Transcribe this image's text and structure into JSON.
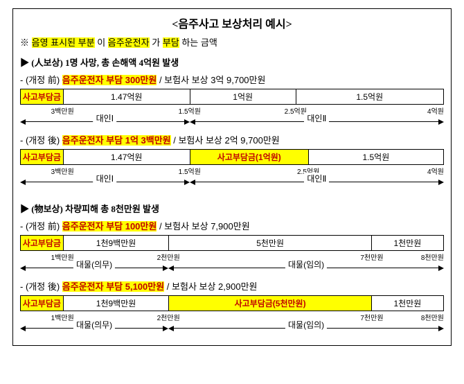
{
  "title": "<음주사고 보상처리 예시>",
  "note_prefix": "※ ",
  "note_parts": [
    "음영 표시된 부분",
    "이 ",
    "음주운전자",
    "가 ",
    "부담",
    "하는 금액"
  ],
  "person": {
    "head_marker": "▶",
    "head_label": "(人보상)",
    "head_rest": " 1명 사망, 총 손해액 4억원 발생",
    "before": {
      "tag": "(개정 前)",
      "driver": "음주운전자 부담 300만원",
      "insurer": " / 보험사 보상 3억 9,700만원",
      "cells": [
        "사고부담금",
        "1.47억원",
        "1억원",
        "1.5억원"
      ],
      "widths": [
        "10%",
        "30%",
        "25%",
        "35%"
      ],
      "hl_idx": [
        true,
        false,
        false,
        false
      ],
      "ticks": [
        {
          "pos": 10,
          "label": "3백만원"
        },
        {
          "pos": 40,
          "label": "1.5억원"
        },
        {
          "pos": 65,
          "label": "2.5억원"
        },
        {
          "pos": 100,
          "label": "4억원"
        }
      ],
      "arrows": [
        {
          "l": 0,
          "r": 40,
          "label": "대인Ⅰ"
        },
        {
          "l": 40,
          "r": 100,
          "label": "대인Ⅱ"
        }
      ]
    },
    "after": {
      "tag": "(개정 後)",
      "driver": "음주운전자 부담 1억 3백만원",
      "insurer": " / 보험사 보상 2억 9,700만원",
      "cells": [
        "사고부담금",
        "1.47억원",
        "사고부담금(1억원)",
        "1.5억원"
      ],
      "widths": [
        "10%",
        "30%",
        "28%",
        "32%"
      ],
      "hl_idx": [
        true,
        false,
        true,
        false
      ],
      "ticks": [
        {
          "pos": 10,
          "label": "3백만원"
        },
        {
          "pos": 40,
          "label": "1.5억원"
        },
        {
          "pos": 68,
          "label": "2.5억원"
        },
        {
          "pos": 100,
          "label": "4억원"
        }
      ],
      "arrows": [
        {
          "l": 0,
          "r": 40,
          "label": "대인Ⅰ"
        },
        {
          "l": 40,
          "r": 100,
          "label": "대인Ⅱ"
        }
      ]
    }
  },
  "object": {
    "head_marker": "▶",
    "head_label": "(物보상)",
    "head_rest": " 차량피해 총 8천만원 발생",
    "before": {
      "tag": "(개정 前)",
      "driver": "음주운전자 부담 100만원",
      "insurer": " / 보험사 보상 7,900만원",
      "cells": [
        "사고부담금",
        "1천9백만원",
        "5천만원",
        "1천만원"
      ],
      "widths": [
        "10%",
        "25%",
        "48%",
        "17%"
      ],
      "hl_idx": [
        true,
        false,
        false,
        false
      ],
      "ticks": [
        {
          "pos": 10,
          "label": "1백만원"
        },
        {
          "pos": 35,
          "label": "2천만원"
        },
        {
          "pos": 83,
          "label": "7천만원"
        },
        {
          "pos": 100,
          "label": "8천만원"
        }
      ],
      "arrows": [
        {
          "l": 0,
          "r": 35,
          "label": "대물(의무)"
        },
        {
          "l": 35,
          "r": 100,
          "label": "대물(임의)"
        }
      ]
    },
    "after": {
      "tag": "(개정 後)",
      "driver": "음주운전자 부담 5,100만원",
      "insurer": " / 보험사 보상 2,900만원",
      "cells": [
        "사고부담금",
        "1천9백만원",
        "사고부담금(5천만원)",
        "1천만원"
      ],
      "widths": [
        "10%",
        "25%",
        "48%",
        "17%"
      ],
      "hl_idx": [
        true,
        false,
        true,
        false
      ],
      "ticks": [
        {
          "pos": 10,
          "label": "1백만원"
        },
        {
          "pos": 35,
          "label": "2천만원"
        },
        {
          "pos": 83,
          "label": "7천만원"
        },
        {
          "pos": 100,
          "label": "8천만원"
        }
      ],
      "arrows": [
        {
          "l": 0,
          "r": 35,
          "label": "대물(의무)"
        },
        {
          "l": 35,
          "r": 100,
          "label": "대물(임의)"
        }
      ]
    }
  }
}
